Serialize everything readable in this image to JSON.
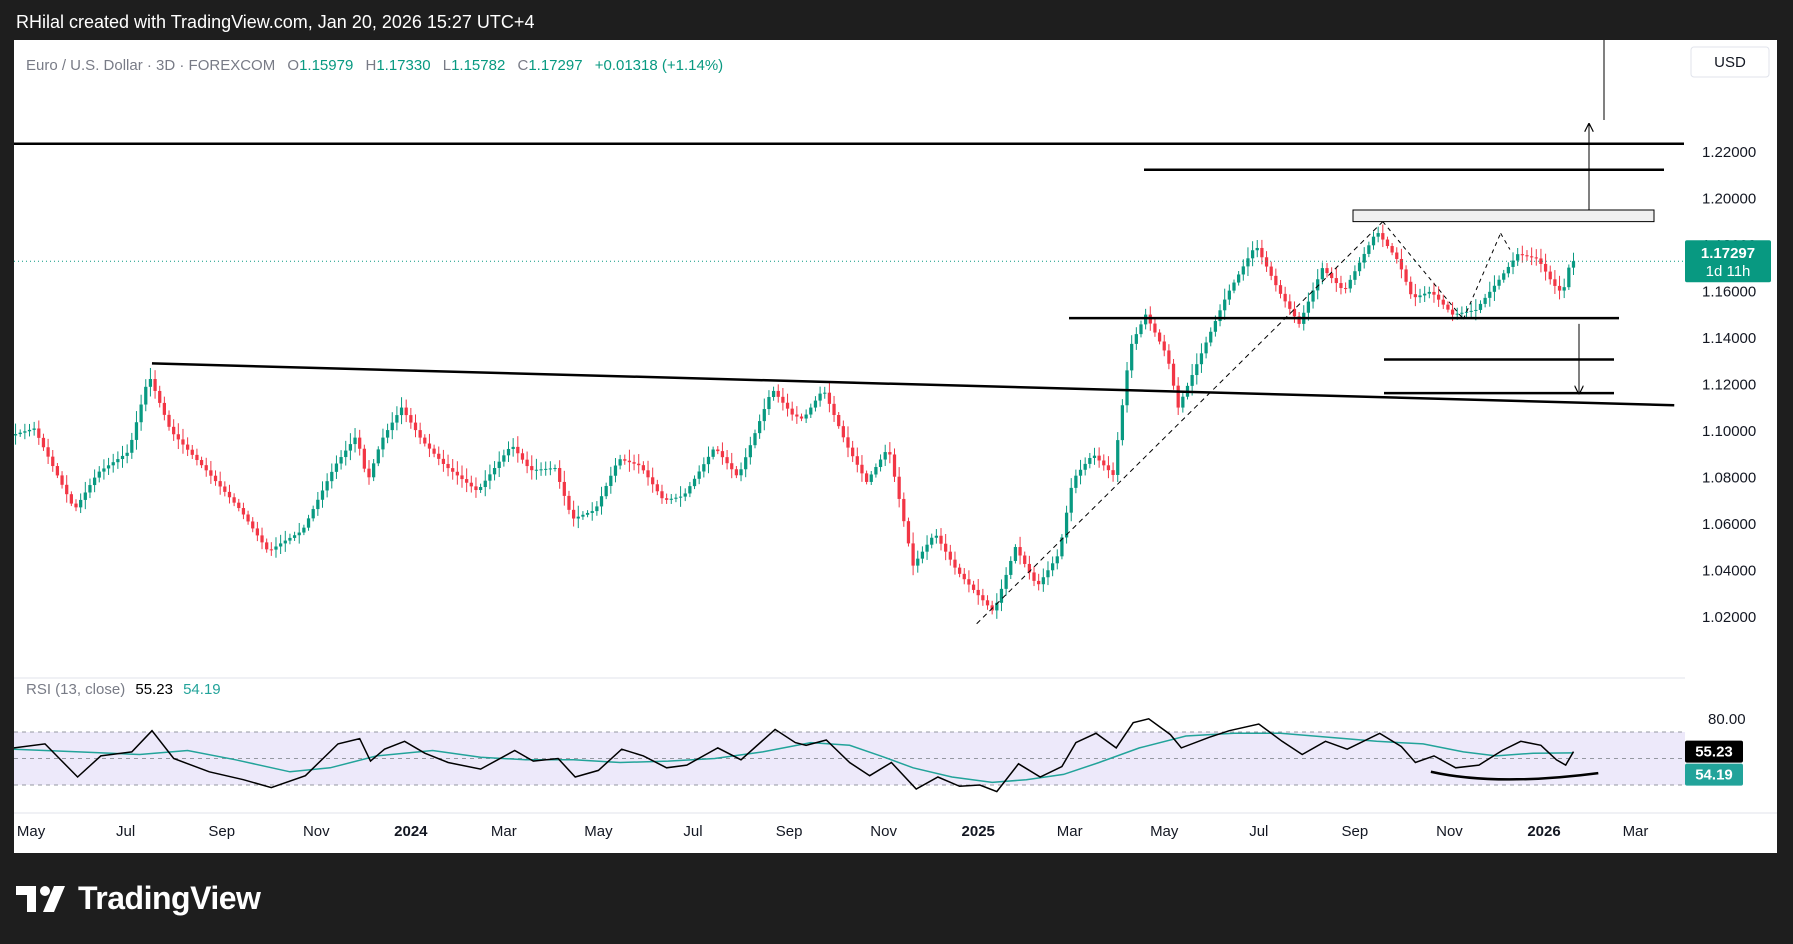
{
  "caption": "RHilal created with TradingView.com, Jan 20, 2026 15:27 UTC+4",
  "brand": "TradingView",
  "legend": {
    "symbol": "Euro / U.S. Dollar · 3D · FOREXCOM",
    "o_label": "O",
    "o": "1.15979",
    "h_label": "H",
    "h": "1.17330",
    "l_label": "L",
    "l": "1.15782",
    "c_label": "C",
    "c": "1.17297",
    "change": "+0.01318 (+1.14%)"
  },
  "currency_button": "USD",
  "price_badge": {
    "price": "1.17297",
    "countdown": "1d 11h"
  },
  "rsi_legend": {
    "label": "RSI (13, close)",
    "rsi": "55.23",
    "ma": "54.19"
  },
  "rsi_badges": {
    "rsi": "55.23",
    "ma": "54.19"
  },
  "colors": {
    "up": "#089981",
    "down": "#f23645",
    "rsi_line": "#000000",
    "rsi_ma": "#22a39a",
    "rsi_band": "#ede9fa",
    "badge": "#089981"
  },
  "chart_data": [
    {
      "type": "candlestick",
      "symbol": "EURUSD",
      "timeframe": "3D",
      "y_axis": {
        "min": 1.01,
        "max": 1.232,
        "ticks": [
          "1.02000",
          "1.04000",
          "1.06000",
          "1.08000",
          "1.10000",
          "1.12000",
          "1.14000",
          "1.16000",
          "1.18000",
          "1.20000",
          "1.22000"
        ]
      },
      "x_axis": {
        "range": [
          "2023-04-20",
          "2026-03-31"
        ],
        "ticks": [
          {
            "label": "May",
            "date": "2023-05-01"
          },
          {
            "label": "Jul",
            "date": "2023-07-01"
          },
          {
            "label": "Sep",
            "date": "2023-09-01"
          },
          {
            "label": "Nov",
            "date": "2023-11-01"
          },
          {
            "label": "2024",
            "date": "2024-01-01"
          },
          {
            "label": "Mar",
            "date": "2024-03-01"
          },
          {
            "label": "May",
            "date": "2024-05-01"
          },
          {
            "label": "Jul",
            "date": "2024-07-01"
          },
          {
            "label": "Sep",
            "date": "2024-09-01"
          },
          {
            "label": "Nov",
            "date": "2024-11-01"
          },
          {
            "label": "2025",
            "date": "2025-01-01"
          },
          {
            "label": "Mar",
            "date": "2025-03-01"
          },
          {
            "label": "May",
            "date": "2025-05-01"
          },
          {
            "label": "Jul",
            "date": "2025-07-01"
          },
          {
            "label": "Sep",
            "date": "2025-09-01"
          },
          {
            "label": "Nov",
            "date": "2025-11-01"
          },
          {
            "label": "2026",
            "date": "2026-01-01"
          },
          {
            "label": "Mar",
            "date": "2026-03-01"
          }
        ]
      },
      "last_price": 1.17297,
      "price_path": [
        [
          "2023-04-20",
          1.098
        ],
        [
          "2023-05-05",
          1.101
        ],
        [
          "2023-05-31",
          1.066
        ],
        [
          "2023-06-15",
          1.082
        ],
        [
          "2023-07-05",
          1.091
        ],
        [
          "2023-07-18",
          1.124
        ],
        [
          "2023-08-01",
          1.1
        ],
        [
          "2023-08-24",
          1.083
        ],
        [
          "2023-09-15",
          1.066
        ],
        [
          "2023-10-03",
          1.048
        ],
        [
          "2023-10-12",
          1.052
        ],
        [
          "2023-10-25",
          1.057
        ],
        [
          "2023-11-15",
          1.085
        ],
        [
          "2023-11-29",
          1.098
        ],
        [
          "2023-12-06",
          1.078
        ],
        [
          "2023-12-15",
          1.096
        ],
        [
          "2023-12-28",
          1.11
        ],
        [
          "2024-01-10",
          1.096
        ],
        [
          "2024-01-25",
          1.085
        ],
        [
          "2024-02-15",
          1.074
        ],
        [
          "2024-03-08",
          1.094
        ],
        [
          "2024-03-20",
          1.083
        ],
        [
          "2024-04-05",
          1.084
        ],
        [
          "2024-04-16",
          1.062
        ],
        [
          "2024-05-01",
          1.066
        ],
        [
          "2024-05-16",
          1.088
        ],
        [
          "2024-05-30",
          1.085
        ],
        [
          "2024-06-14",
          1.07
        ],
        [
          "2024-06-27",
          1.072
        ],
        [
          "2024-07-17",
          1.093
        ],
        [
          "2024-08-01",
          1.08
        ],
        [
          "2024-08-23",
          1.118
        ],
        [
          "2024-09-05",
          1.107
        ],
        [
          "2024-09-12",
          1.105
        ],
        [
          "2024-09-25",
          1.118
        ],
        [
          "2024-10-10",
          1.094
        ],
        [
          "2024-10-23",
          1.078
        ],
        [
          "2024-11-06",
          1.093
        ],
        [
          "2024-11-22",
          1.042
        ],
        [
          "2024-12-06",
          1.056
        ],
        [
          "2024-12-20",
          1.04
        ],
        [
          "2025-01-02",
          1.03
        ],
        [
          "2025-01-13",
          1.022
        ],
        [
          "2025-01-27",
          1.05
        ],
        [
          "2025-02-10",
          1.033
        ],
        [
          "2025-02-24",
          1.047
        ],
        [
          "2025-03-05",
          1.079
        ],
        [
          "2025-03-18",
          1.09
        ],
        [
          "2025-03-31",
          1.081
        ],
        [
          "2025-04-11",
          1.136
        ],
        [
          "2025-04-21",
          1.15
        ],
        [
          "2025-05-05",
          1.132
        ],
        [
          "2025-05-12",
          1.11
        ],
        [
          "2025-05-30",
          1.138
        ],
        [
          "2025-06-12",
          1.158
        ],
        [
          "2025-07-01",
          1.18
        ],
        [
          "2025-07-16",
          1.16
        ],
        [
          "2025-07-29",
          1.146
        ],
        [
          "2025-08-13",
          1.17
        ],
        [
          "2025-08-27",
          1.16
        ],
        [
          "2025-09-17",
          1.186
        ],
        [
          "2025-10-01",
          1.173
        ],
        [
          "2025-10-10",
          1.157
        ],
        [
          "2025-10-22",
          1.16
        ],
        [
          "2025-11-05",
          1.15
        ],
        [
          "2025-11-20",
          1.152
        ],
        [
          "2025-12-05",
          1.165
        ],
        [
          "2025-12-17",
          1.176
        ],
        [
          "2025-12-30",
          1.174
        ],
        [
          "2026-01-09",
          1.163
        ],
        [
          "2026-01-15",
          1.159
        ],
        [
          "2026-01-20",
          1.173
        ]
      ],
      "annotations": {
        "descending_trendline": [
          [
            "2023-07-18",
            1.129
          ],
          [
            "2026-03-26",
            1.111
          ]
        ],
        "diagonal_channel_line": [
          [
            "2024-12-31",
            1.017
          ],
          [
            "2025-09-19",
            1.19
          ]
        ],
        "horizontal_levels": [
          1.2235,
          1.2123,
          1.1485,
          1.1307,
          1.1162
        ],
        "resistance_zone": [
          1.19,
          1.195
        ],
        "projection_arrow_up": [
          1.195,
          1.232
        ],
        "projection_arrow_down": [
          1.146,
          1.116
        ]
      }
    },
    {
      "type": "line",
      "name": "RSI (13, close)",
      "y_axis": {
        "ticks": [
          "80.00"
        ],
        "band": [
          30,
          70
        ]
      },
      "last_values": {
        "rsi": 55.23,
        "ma": 54.19
      },
      "rsi_path": [
        [
          "2023-04-20",
          58
        ],
        [
          "2023-05-10",
          61
        ],
        [
          "2023-05-31",
          36
        ],
        [
          "2023-06-15",
          52
        ],
        [
          "2023-07-05",
          55
        ],
        [
          "2023-07-18",
          71
        ],
        [
          "2023-08-01",
          50
        ],
        [
          "2023-08-24",
          40
        ],
        [
          "2023-09-15",
          34
        ],
        [
          "2023-10-03",
          28
        ],
        [
          "2023-10-25",
          37
        ],
        [
          "2023-11-15",
          61
        ],
        [
          "2023-11-29",
          65
        ],
        [
          "2023-12-06",
          48
        ],
        [
          "2023-12-15",
          57
        ],
        [
          "2023-12-28",
          63
        ],
        [
          "2024-01-10",
          54
        ],
        [
          "2024-01-25",
          47
        ],
        [
          "2024-02-15",
          42
        ],
        [
          "2024-03-08",
          56
        ],
        [
          "2024-03-20",
          48
        ],
        [
          "2024-04-05",
          50
        ],
        [
          "2024-04-16",
          36
        ],
        [
          "2024-05-01",
          41
        ],
        [
          "2024-05-16",
          57
        ],
        [
          "2024-05-30",
          52
        ],
        [
          "2024-06-14",
          43
        ],
        [
          "2024-06-27",
          45
        ],
        [
          "2024-07-17",
          58
        ],
        [
          "2024-08-01",
          49
        ],
        [
          "2024-08-23",
          72
        ],
        [
          "2024-09-05",
          62
        ],
        [
          "2024-09-12",
          60
        ],
        [
          "2024-09-25",
          64
        ],
        [
          "2024-10-10",
          47
        ],
        [
          "2024-10-23",
          37
        ],
        [
          "2024-11-06",
          47
        ],
        [
          "2024-11-22",
          27
        ],
        [
          "2024-12-06",
          36
        ],
        [
          "2024-12-20",
          29
        ],
        [
          "2025-01-02",
          30
        ],
        [
          "2025-01-13",
          25
        ],
        [
          "2025-01-27",
          46
        ],
        [
          "2025-02-10",
          36
        ],
        [
          "2025-02-24",
          44
        ],
        [
          "2025-03-05",
          62
        ],
        [
          "2025-03-18",
          69
        ],
        [
          "2025-03-31",
          58
        ],
        [
          "2025-04-11",
          77
        ],
        [
          "2025-04-21",
          80
        ],
        [
          "2025-05-05",
          68
        ],
        [
          "2025-05-12",
          58
        ],
        [
          "2025-05-30",
          66
        ],
        [
          "2025-06-12",
          71
        ],
        [
          "2025-07-01",
          76
        ],
        [
          "2025-07-16",
          63
        ],
        [
          "2025-07-29",
          53
        ],
        [
          "2025-08-13",
          63
        ],
        [
          "2025-08-27",
          57
        ],
        [
          "2025-09-17",
          69
        ],
        [
          "2025-10-01",
          59
        ],
        [
          "2025-10-10",
          47
        ],
        [
          "2025-10-22",
          52
        ],
        [
          "2025-11-05",
          43
        ],
        [
          "2025-11-20",
          45
        ],
        [
          "2025-12-05",
          56
        ],
        [
          "2025-12-17",
          63
        ],
        [
          "2025-12-30",
          60
        ],
        [
          "2026-01-09",
          49
        ],
        [
          "2026-01-15",
          45
        ],
        [
          "2026-01-20",
          55.23
        ]
      ],
      "ma_path": [
        [
          "2023-04-20",
          57
        ],
        [
          "2023-06-01",
          55
        ],
        [
          "2023-07-10",
          53
        ],
        [
          "2023-08-10",
          56
        ],
        [
          "2023-09-10",
          49
        ],
        [
          "2023-10-15",
          40
        ],
        [
          "2023-11-10",
          43
        ],
        [
          "2023-12-10",
          52
        ],
        [
          "2024-01-15",
          56
        ],
        [
          "2024-02-15",
          51
        ],
        [
          "2024-03-15",
          49
        ],
        [
          "2024-04-15",
          49
        ],
        [
          "2024-05-15",
          47
        ],
        [
          "2024-06-15",
          48
        ],
        [
          "2024-07-15",
          50
        ],
        [
          "2024-08-15",
          55
        ],
        [
          "2024-09-15",
          62
        ],
        [
          "2024-10-10",
          60
        ],
        [
          "2024-10-30",
          52
        ],
        [
          "2024-11-20",
          43
        ],
        [
          "2024-12-15",
          36
        ],
        [
          "2025-01-10",
          32
        ],
        [
          "2025-02-01",
          34
        ],
        [
          "2025-02-25",
          38
        ],
        [
          "2025-03-20",
          47
        ],
        [
          "2025-04-15",
          58
        ],
        [
          "2025-05-15",
          67
        ],
        [
          "2025-06-15",
          69
        ],
        [
          "2025-07-15",
          69
        ],
        [
          "2025-08-15",
          66
        ],
        [
          "2025-09-15",
          63
        ],
        [
          "2025-10-15",
          61
        ],
        [
          "2025-11-10",
          55
        ],
        [
          "2025-12-01",
          52
        ],
        [
          "2025-12-25",
          54
        ],
        [
          "2026-01-20",
          54.19
        ]
      ],
      "annotation_curve": [
        [
          "2025-10-20",
          40
        ],
        [
          "2025-12-01",
          35
        ],
        [
          "2026-02-05",
          39
        ]
      ]
    }
  ]
}
